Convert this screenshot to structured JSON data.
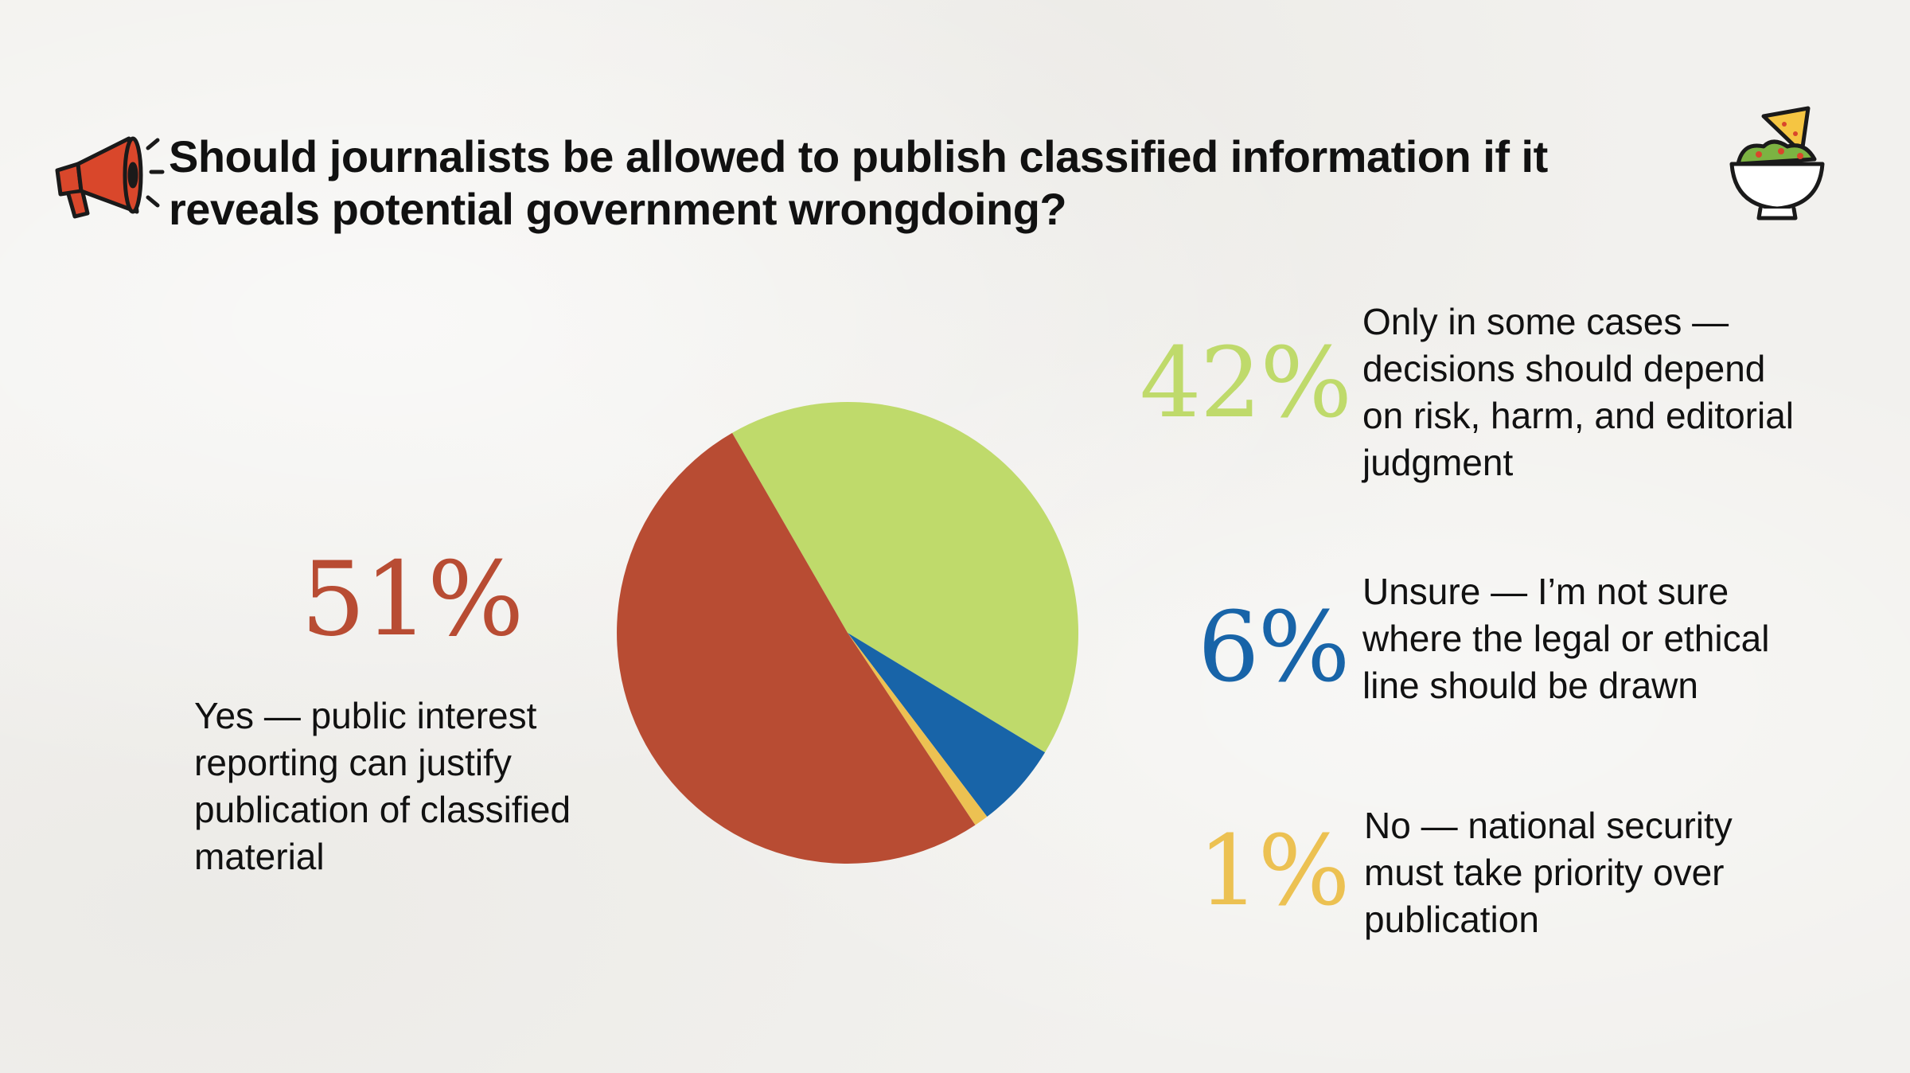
{
  "title": "Should journalists be allowed to publish classified information if it reveals potential government wrongdoing?",
  "icons": {
    "left": "megaphone-icon",
    "right": "chips-and-guacamole-icon"
  },
  "chart_data": {
    "type": "pie",
    "title": "Should journalists be allowed to publish classified information if it reveals potential government wrongdoing?",
    "start_angle_deg": -30,
    "direction": "clockwise",
    "slices": [
      {
        "key": "some",
        "percent_label": "42%",
        "value": 42,
        "label": "Only in some cases — decisions should depend on risk, harm, and editorial judgment",
        "color": "#bfda6b"
      },
      {
        "key": "unsure",
        "percent_label": "6%",
        "value": 6,
        "label": "Unsure — I’m not sure where the legal or ethical line should be drawn",
        "color": "#1864a8"
      },
      {
        "key": "no",
        "percent_label": "1%",
        "value": 1,
        "label": "No — national security must take priority over publication",
        "color": "#ecc152"
      },
      {
        "key": "yes",
        "percent_label": "51%",
        "value": 51,
        "label": "Yes — public interest reporting can justify publication of classified material",
        "color": "#b84c33"
      }
    ]
  }
}
